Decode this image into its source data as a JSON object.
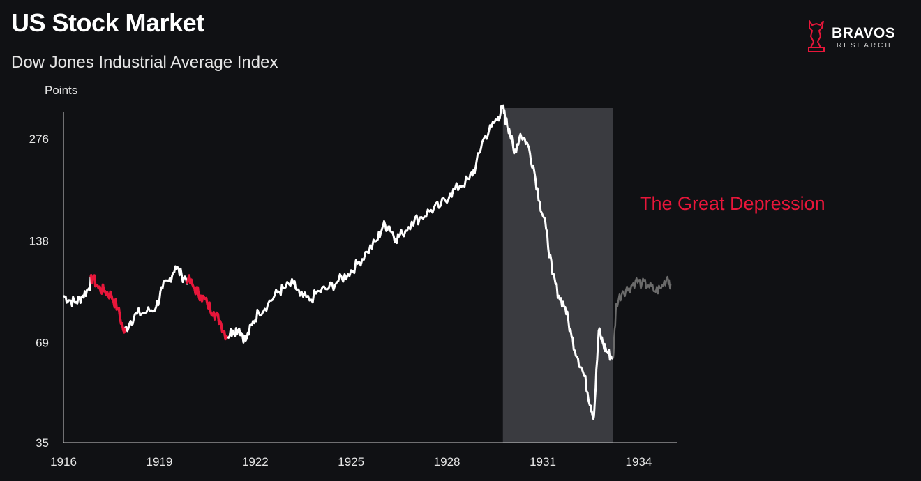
{
  "title": "US Stock Market",
  "subtitle": "Dow Jones Industrial Average Index",
  "logo": {
    "word": "BRAVOS",
    "sub": "RESEARCH"
  },
  "colors": {
    "background": "#101114",
    "line": "#ffffff",
    "bear_highlight": "#e8163a",
    "after_period": "#6b6b6b",
    "shade": "#3a3b40",
    "annotation": "#e8163a"
  },
  "chart_data": {
    "type": "line",
    "ylabel": "Points",
    "yscale": "log",
    "ylim": [
      35,
      340
    ],
    "xlim": [
      1916.0,
      1935.0
    ],
    "yticks": [
      276,
      138,
      69,
      35
    ],
    "xticks": [
      1916,
      1919,
      1922,
      1925,
      1928,
      1931,
      1934
    ],
    "grid": false,
    "annotation": "The Great Depression",
    "shaded_period": [
      1929.75,
      1933.2
    ],
    "highlight_periods": [
      [
        1916.85,
        1917.95
      ],
      [
        1919.85,
        1921.15
      ]
    ],
    "series": [
      {
        "x": [
          1916.0,
          1916.2,
          1916.4,
          1916.6,
          1916.8,
          1916.9,
          1917.1,
          1917.3,
          1917.5,
          1917.7,
          1917.9,
          1918.1,
          1918.3,
          1918.6,
          1918.9,
          1919.1,
          1919.3,
          1919.5,
          1919.7,
          1919.9,
          1920.1,
          1920.3,
          1920.5,
          1920.7,
          1920.9,
          1921.1,
          1921.3,
          1921.5,
          1921.7,
          1921.9,
          1922.1,
          1922.4,
          1922.7,
          1922.9,
          1923.2,
          1923.4,
          1923.7,
          1924.0,
          1924.3,
          1924.6,
          1924.9,
          1925.2,
          1925.5,
          1925.8,
          1926.0,
          1926.2,
          1926.4,
          1926.6,
          1926.9,
          1927.2,
          1927.5,
          1927.8,
          1928.1,
          1928.4,
          1928.7,
          1928.9,
          1929.1,
          1929.4,
          1929.6,
          1929.75,
          1929.85,
          1929.95,
          1930.1,
          1930.3,
          1930.5,
          1930.7,
          1930.9,
          1931.1,
          1931.3,
          1931.5,
          1931.7,
          1931.9,
          1932.1,
          1932.3,
          1932.5,
          1932.6,
          1932.75,
          1932.9,
          1933.0,
          1933.2,
          1933.3,
          1933.5,
          1933.7,
          1933.9,
          1934.1,
          1934.3,
          1934.5,
          1934.7,
          1934.9,
          1935.0
        ],
        "y": [
          95,
          92,
          91,
          95,
          100,
          108,
          100,
          98,
          95,
          87,
          74,
          80,
          84,
          85,
          88,
          100,
          105,
          116,
          109,
          106,
          100,
          95,
          90,
          85,
          80,
          72,
          75,
          76,
          70,
          78,
          85,
          90,
          97,
          100,
          103,
          95,
          92,
          98,
          100,
          105,
          110,
          118,
          128,
          138,
          153,
          152,
          140,
          145,
          157,
          162,
          170,
          175,
          190,
          200,
          210,
          228,
          270,
          300,
          320,
          340,
          310,
          295,
          250,
          285,
          270,
          230,
          180,
          150,
          110,
          95,
          88,
          72,
          62,
          55,
          45,
          42,
          75,
          68,
          65,
          62,
          90,
          98,
          100,
          105,
          103,
          102,
          98,
          100,
          108,
          103
        ]
      }
    ]
  }
}
